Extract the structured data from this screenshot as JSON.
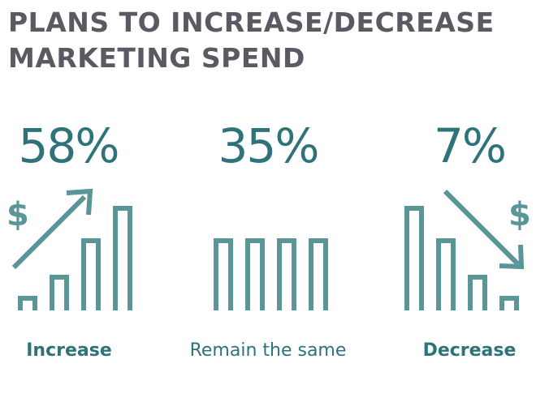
{
  "title_lines": [
    "PLANS TO INCREASE/DECREASE",
    "MARKETING SPEND"
  ],
  "chart_data": {
    "type": "bar",
    "title": "PLANS TO INCREASE/DECREASE MARKETING SPEND",
    "categories": [
      "Increase",
      "Remain the same",
      "Decrease"
    ],
    "values": [
      58,
      35,
      7
    ],
    "value_labels": [
      "58%",
      "35%",
      "7%"
    ],
    "unit": "%"
  },
  "icons": {
    "increase": [
      "dollar-icon",
      "arrow-up-right-icon",
      "rising-bars-icon"
    ],
    "same": [
      "equal-bars-icon"
    ],
    "decrease": [
      "dollar-icon",
      "arrow-down-right-icon",
      "falling-bars-icon"
    ]
  },
  "symbols": {
    "currency": "$"
  },
  "colors": {
    "title": "#5a5a62",
    "accent": "#2e7379",
    "icon": "#5a9598"
  }
}
